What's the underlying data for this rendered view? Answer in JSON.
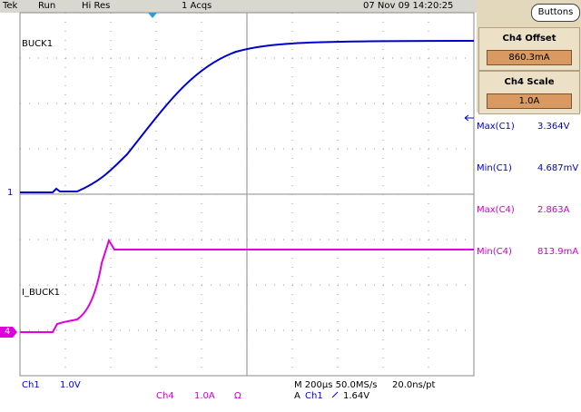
{
  "header": {
    "brand": "Tek",
    "state": "Run",
    "mode": "Hi Res",
    "acqs": "1 Acqs",
    "datetime": "07 Nov 09 14:20:25"
  },
  "side_panel": {
    "button": "Buttons",
    "offset": {
      "label": "Ch4 Offset",
      "value": "860.3mA"
    },
    "scale": {
      "label": "Ch4 Scale",
      "value": "1.0A"
    },
    "measurements": [
      {
        "label": "Max(C1)",
        "value": "3.364V"
      },
      {
        "label": "Min(C1)",
        "value": "4.687mV"
      },
      {
        "label": "Max(C4)",
        "value": "2.863A"
      },
      {
        "label": "Min(C4)",
        "value": "813.9mA"
      }
    ]
  },
  "traces": {
    "ch1": {
      "label": "BUCK1",
      "marker": "1"
    },
    "ch4": {
      "label": "I_BUCK1",
      "marker": "4"
    }
  },
  "footer": {
    "ch1": {
      "name": "Ch1",
      "scale": "1.0V"
    },
    "ch4": {
      "name": "Ch4",
      "scale": "1.0A",
      "impedance": "Ω"
    },
    "timebase": "M 200µs 50.0MS/s",
    "resolution": "20.0ns/pt",
    "trigger": {
      "mode": "A",
      "source": "Ch1",
      "level": "1.64V"
    }
  }
}
